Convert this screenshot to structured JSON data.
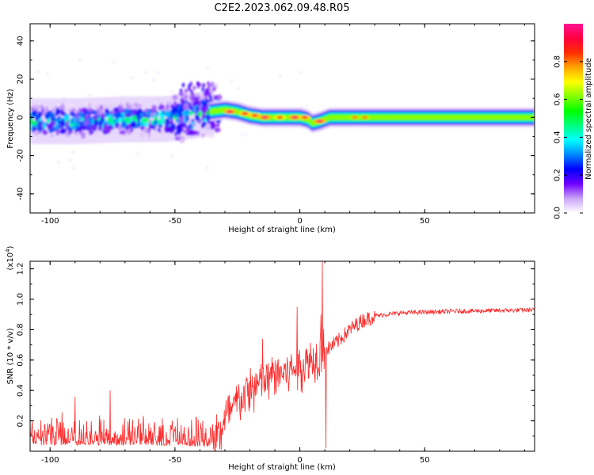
{
  "title": "C2E2.2023.062.09.48.R05",
  "chart_data": [
    {
      "type": "heatmap",
      "xlabel": "Height of straight line (km)",
      "ylabel": "Frequency (Hz)",
      "xlim": [
        -108,
        94
      ],
      "ylim": [
        -50,
        49
      ],
      "xticks": [
        -100,
        -50,
        0,
        50
      ],
      "yticks": [
        -40,
        -20,
        0,
        20,
        40
      ],
      "colorbar": {
        "label": "Normalized spectral amplitude",
        "range": [
          0.0,
          1.0
        ],
        "ticks": [
          0.0,
          0.2,
          0.4,
          0.6,
          0.8
        ],
        "tick_labels": [
          "0.0",
          "0.2",
          "0.4",
          "0.6",
          "0.8"
        ],
        "colormap": [
          "#ffffff",
          "#c9a3f7",
          "#6f00ff",
          "#0000ff",
          "#0088ff",
          "#00ffff",
          "#00ff80",
          "#00ff00",
          "#80ff00",
          "#ffff00",
          "#ffa500",
          "#ff3000",
          "#ff0040",
          "#ff1493"
        ]
      },
      "band_center_hz": [
        [
          -108,
          -2
        ],
        [
          -90,
          -2
        ],
        [
          -70,
          -1
        ],
        [
          -55,
          -1
        ],
        [
          -48,
          0
        ],
        [
          -42,
          1
        ],
        [
          -36,
          3
        ],
        [
          -30,
          4
        ],
        [
          -25,
          3
        ],
        [
          -20,
          1
        ],
        [
          -15,
          0
        ],
        [
          -5,
          0
        ],
        [
          0,
          0
        ],
        [
          3,
          -1
        ],
        [
          5,
          -3
        ],
        [
          8,
          -2
        ],
        [
          12,
          0
        ],
        [
          30,
          0
        ],
        [
          94,
          0
        ]
      ],
      "peaks": [
        {
          "x": -28,
          "y": 3,
          "value": 0.95
        },
        {
          "x": -22,
          "y": 2,
          "value": 0.9
        },
        {
          "x": -18,
          "y": 1,
          "value": 0.9
        },
        {
          "x": -14,
          "y": 0,
          "value": 0.95
        },
        {
          "x": -8,
          "y": 0,
          "value": 0.85
        },
        {
          "x": -2,
          "y": 0,
          "value": 0.95
        },
        {
          "x": 2,
          "y": 0,
          "value": 0.9
        },
        {
          "x": 8,
          "y": -2,
          "value": 0.95
        },
        {
          "x": 22,
          "y": 0,
          "value": 0.8
        },
        {
          "x": 26,
          "y": 0,
          "value": 0.8
        }
      ],
      "grid": false
    },
    {
      "type": "line",
      "series": [
        {
          "color": "#ff2a2a"
        }
      ],
      "xlabel": "Height of straight line (km)",
      "ylabel": "SNR (10 * v/v)",
      "y_multiplier_label": "(x10",
      "y_multiplier_exp": "4",
      "y_multiplier_close": ")",
      "xlim": [
        -108,
        94
      ],
      "ylim": [
        0,
        1.25
      ],
      "xticks": [
        -100,
        -50,
        0,
        50
      ],
      "yticks": [
        0.2,
        0.4,
        0.6,
        0.8,
        1.0,
        1.2
      ],
      "ytick_labels": [
        "0.2",
        "0.4",
        "0.6",
        "0.8",
        "1.0",
        "1.2"
      ],
      "trend": [
        [
          -108,
          0.06
        ],
        [
          -60,
          0.06
        ],
        [
          -40,
          0.05
        ],
        [
          -36,
          0.05
        ],
        [
          -33,
          0.1
        ],
        [
          -30,
          0.2
        ],
        [
          -25,
          0.32
        ],
        [
          -20,
          0.4
        ],
        [
          -10,
          0.5
        ],
        [
          0,
          0.56
        ],
        [
          5,
          0.6
        ],
        [
          8,
          0.65
        ],
        [
          10,
          0.66
        ],
        [
          15,
          0.72
        ],
        [
          20,
          0.8
        ],
        [
          25,
          0.86
        ],
        [
          30,
          0.89
        ],
        [
          40,
          0.91
        ],
        [
          60,
          0.92
        ],
        [
          94,
          0.93
        ]
      ],
      "spikes": [
        {
          "x": 9,
          "y": 1.25
        },
        {
          "x": 10.5,
          "y": 0.02
        },
        {
          "x": 8.5,
          "y": 0.9
        },
        {
          "x": -1,
          "y": 0.95
        },
        {
          "x": -15,
          "y": 0.74
        },
        {
          "x": -76,
          "y": 0.4
        },
        {
          "x": -90,
          "y": 0.36
        }
      ],
      "grid": false
    }
  ]
}
